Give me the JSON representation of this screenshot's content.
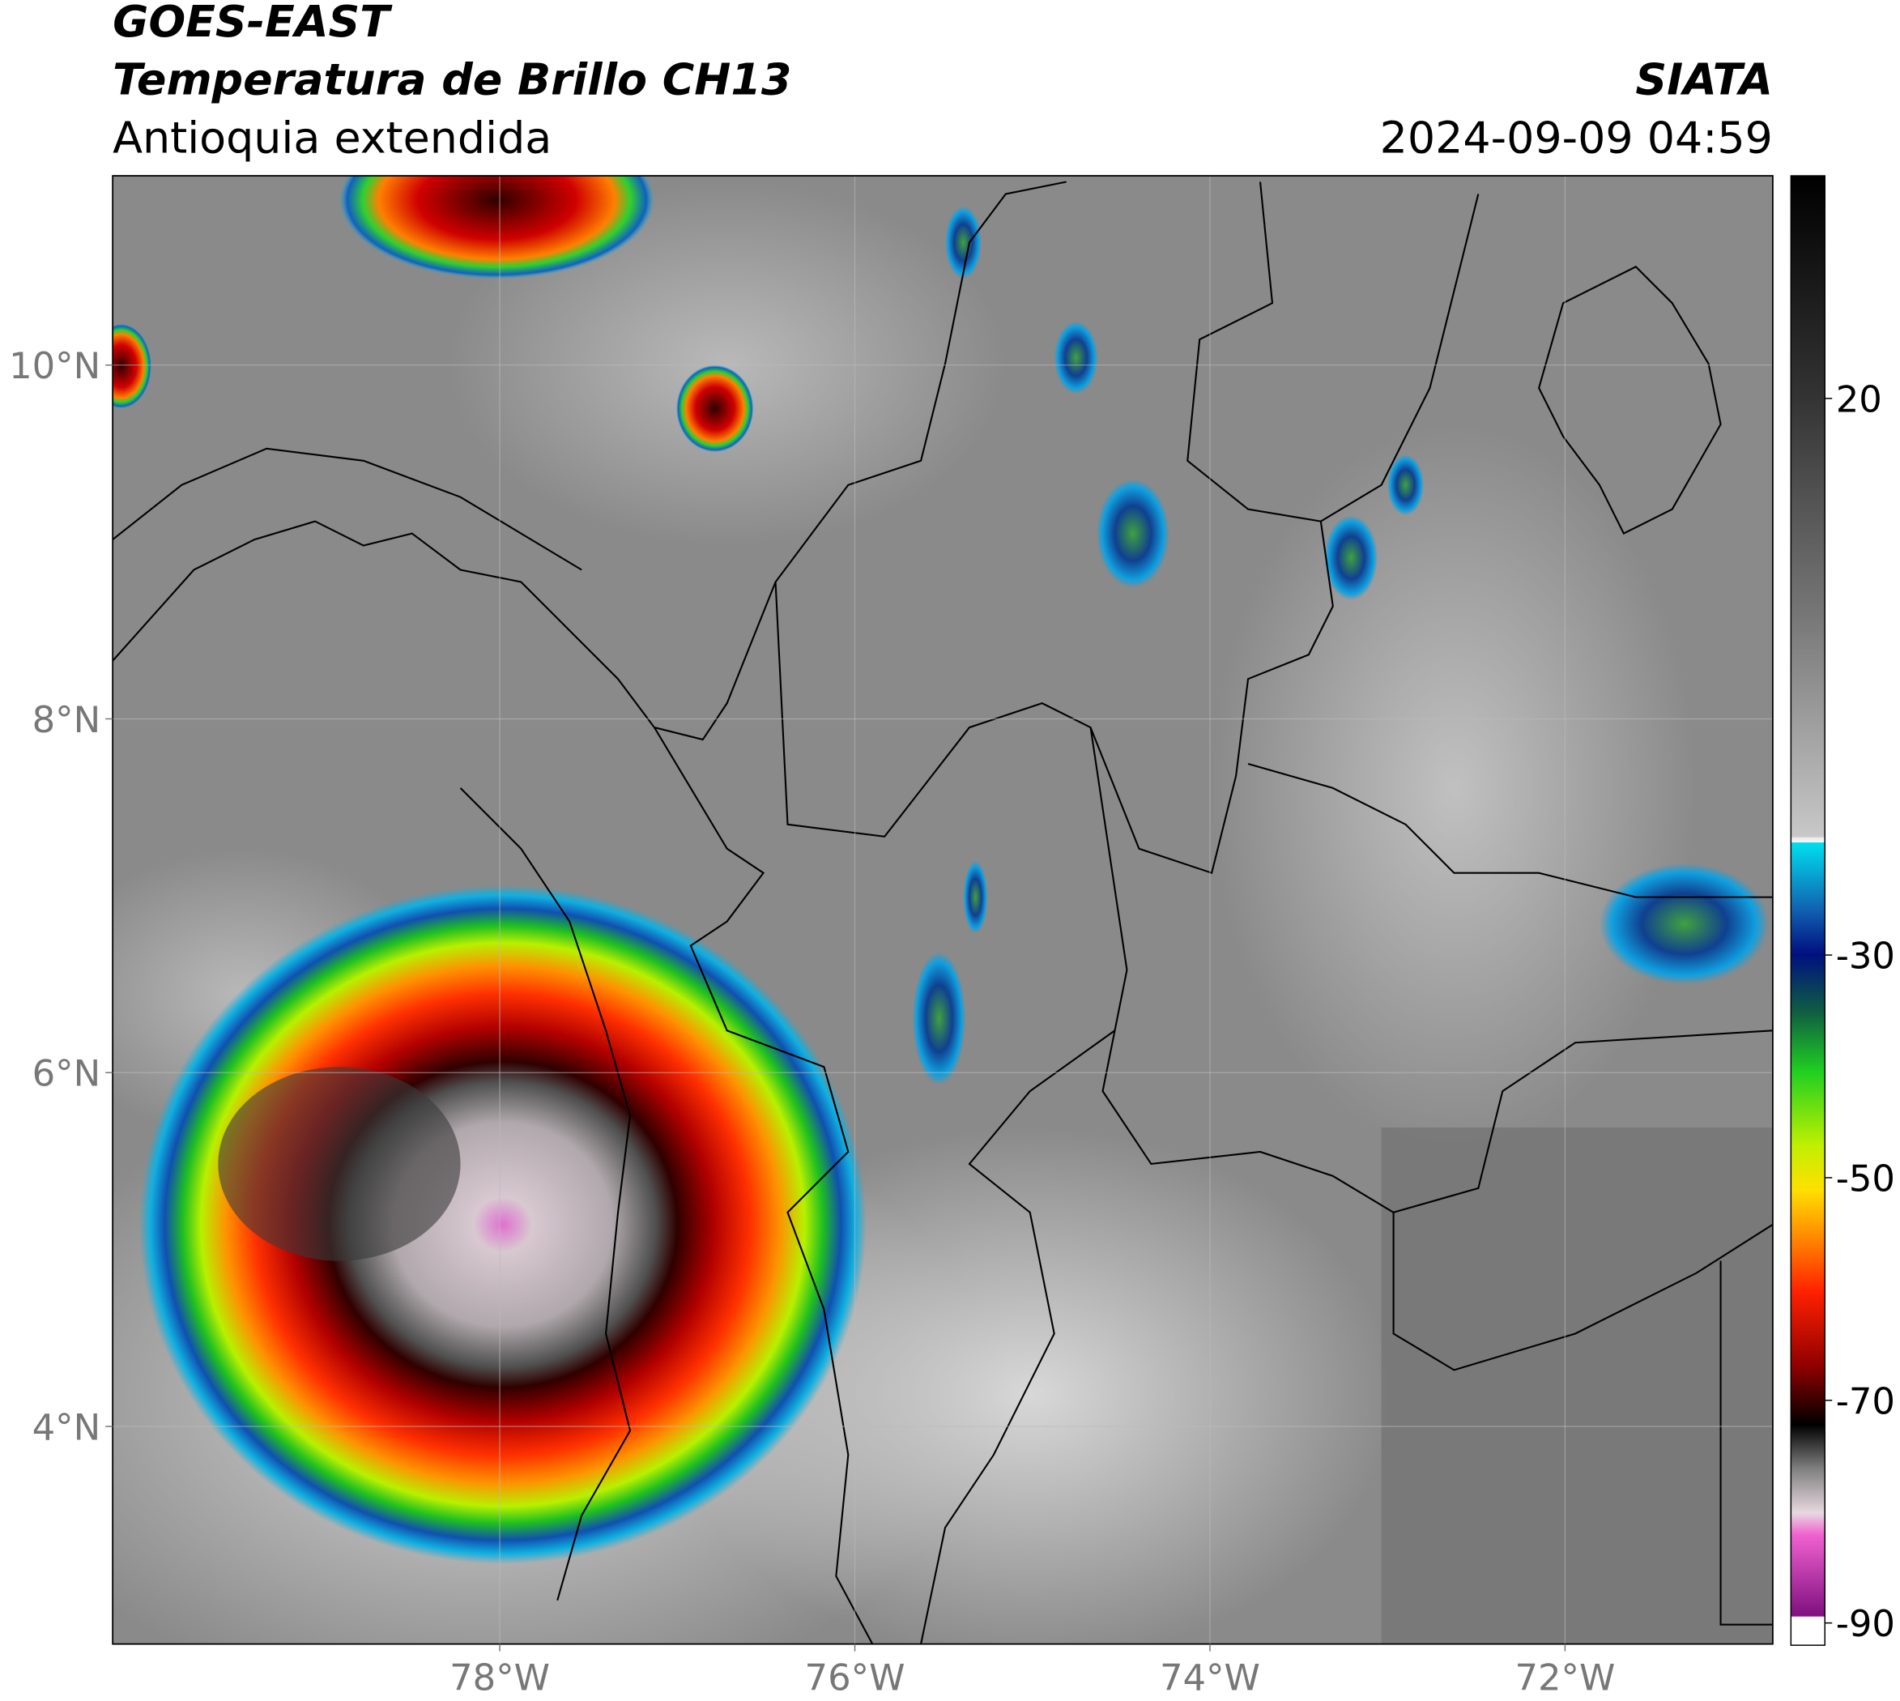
{
  "header": {
    "title": "GOES-EAST",
    "subtitle": "Temperatura de Brillo CH13",
    "region": "Antioquia extendida",
    "source": "SIATA",
    "datetime": "2024-09-09 04:59"
  },
  "map": {
    "xlim": [
      -80.18,
      -70.83
    ],
    "ylim": [
      2.77,
      11.07
    ],
    "xticks": [
      {
        "value": -78,
        "label": "78°W"
      },
      {
        "value": -76,
        "label": "76°W"
      },
      {
        "value": -74,
        "label": "74°W"
      },
      {
        "value": -72,
        "label": "72°W"
      }
    ],
    "yticks": [
      {
        "value": 10,
        "label": "10°N"
      },
      {
        "value": 8,
        "label": "8°N"
      },
      {
        "value": 6,
        "label": "6°N"
      },
      {
        "value": 4,
        "label": "4°N"
      }
    ],
    "grid": true
  },
  "colorbar": {
    "lim": [
      -92,
      40
    ],
    "ticks": [
      20,
      -30,
      -50,
      -70,
      -90
    ]
  }
}
